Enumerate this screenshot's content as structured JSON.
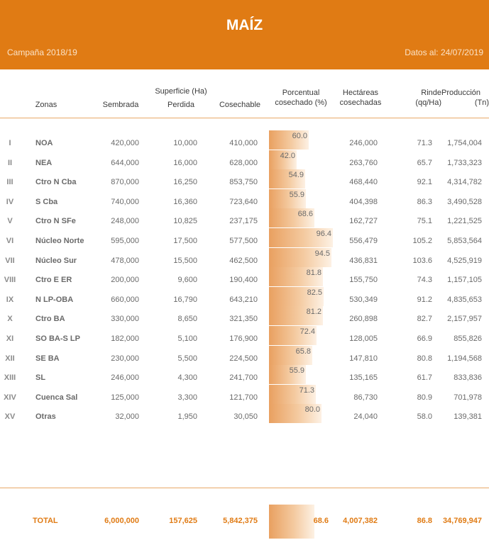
{
  "header": {
    "title": "MAÍZ",
    "campaign": "Campaña 2018/19",
    "date": "Datos al: 24/07/2019"
  },
  "columns": {
    "superficie_group": "Superficie (Ha)",
    "zonas": "Zonas",
    "sembrada": "Sembrada",
    "perdida": "Perdida",
    "cosechable": "Cosechable",
    "porcentual_1": "Porcentual",
    "porcentual_2": "cosechado (%)",
    "hectareas_1": "Hectáreas",
    "hectareas_2": "cosechadas",
    "rinde_1": "Rinde",
    "rinde_2": "(qq/Ha)",
    "produccion_1": "Producción",
    "produccion_2": "(Tn)"
  },
  "rows": [
    {
      "num": "I",
      "zona": "NOA",
      "sembrada": "420,000",
      "perdida": "10,000",
      "cosechable": "410,000",
      "pct": 60.0,
      "pct_label": "60.0",
      "hectareas": "246,000",
      "rinde": "71.3",
      "produccion": "1,754,004"
    },
    {
      "num": "II",
      "zona": "NEA",
      "sembrada": "644,000",
      "perdida": "16,000",
      "cosechable": "628,000",
      "pct": 42.0,
      "pct_label": "42.0",
      "hectareas": "263,760",
      "rinde": "65.7",
      "produccion": "1,733,323"
    },
    {
      "num": "III",
      "zona": "Ctro N Cba",
      "sembrada": "870,000",
      "perdida": "16,250",
      "cosechable": "853,750",
      "pct": 54.9,
      "pct_label": "54.9",
      "hectareas": "468,440",
      "rinde": "92.1",
      "produccion": "4,314,782"
    },
    {
      "num": "IV",
      "zona": "S Cba",
      "sembrada": "740,000",
      "perdida": "16,360",
      "cosechable": "723,640",
      "pct": 55.9,
      "pct_label": "55.9",
      "hectareas": "404,398",
      "rinde": "86.3",
      "produccion": "3,490,528"
    },
    {
      "num": "V",
      "zona": "Ctro N SFe",
      "sembrada": "248,000",
      "perdida": "10,825",
      "cosechable": "237,175",
      "pct": 68.6,
      "pct_label": "68.6",
      "hectareas": "162,727",
      "rinde": "75.1",
      "produccion": "1,221,525"
    },
    {
      "num": "VI",
      "zona": "Núcleo Norte",
      "sembrada": "595,000",
      "perdida": "17,500",
      "cosechable": "577,500",
      "pct": 96.4,
      "pct_label": "96.4",
      "hectareas": "556,479",
      "rinde": "105.2",
      "produccion": "5,853,564"
    },
    {
      "num": "VII",
      "zona": "Núcleo Sur",
      "sembrada": "478,000",
      "perdida": "15,500",
      "cosechable": "462,500",
      "pct": 94.5,
      "pct_label": "94.5",
      "hectareas": "436,831",
      "rinde": "103.6",
      "produccion": "4,525,919"
    },
    {
      "num": "VIII",
      "zona": "Ctro E ER",
      "sembrada": "200,000",
      "perdida": "9,600",
      "cosechable": "190,400",
      "pct": 81.8,
      "pct_label": "81.8",
      "hectareas": "155,750",
      "rinde": "74.3",
      "produccion": "1,157,105"
    },
    {
      "num": "IX",
      "zona": "N LP-OBA",
      "sembrada": "660,000",
      "perdida": "16,790",
      "cosechable": "643,210",
      "pct": 82.5,
      "pct_label": "82.5",
      "hectareas": "530,349",
      "rinde": "91.2",
      "produccion": "4,835,653"
    },
    {
      "num": "X",
      "zona": "Ctro BA",
      "sembrada": "330,000",
      "perdida": "8,650",
      "cosechable": "321,350",
      "pct": 81.2,
      "pct_label": "81.2",
      "hectareas": "260,898",
      "rinde": "82.7",
      "produccion": "2,157,957"
    },
    {
      "num": "XI",
      "zona": "SO BA-S LP",
      "sembrada": "182,000",
      "perdida": "5,100",
      "cosechable": "176,900",
      "pct": 72.4,
      "pct_label": "72.4",
      "hectareas": "128,005",
      "rinde": "66.9",
      "produccion": "855,826"
    },
    {
      "num": "XII",
      "zona": "SE BA",
      "sembrada": "230,000",
      "perdida": "5,500",
      "cosechable": "224,500",
      "pct": 65.8,
      "pct_label": "65.8",
      "hectareas": "147,810",
      "rinde": "80.8",
      "produccion": "1,194,568"
    },
    {
      "num": "XIII",
      "zona": "SL",
      "sembrada": "246,000",
      "perdida": "4,300",
      "cosechable": "241,700",
      "pct": 55.9,
      "pct_label": "55.9",
      "hectareas": "135,165",
      "rinde": "61.7",
      "produccion": "833,836"
    },
    {
      "num": "XIV",
      "zona": "Cuenca Sal",
      "sembrada": "125,000",
      "perdida": "3,300",
      "cosechable": "121,700",
      "pct": 71.3,
      "pct_label": "71.3",
      "hectareas": "86,730",
      "rinde": "80.9",
      "produccion": "701,978"
    },
    {
      "num": "XV",
      "zona": "Otras",
      "sembrada": "32,000",
      "perdida": "1,950",
      "cosechable": "30,050",
      "pct": 80.0,
      "pct_label": "80.0",
      "hectareas": "24,040",
      "rinde": "58.0",
      "produccion": "139,381"
    }
  ],
  "total": {
    "label": "TOTAL",
    "sembrada": "6,000,000",
    "perdida": "157,625",
    "cosechable": "5,842,375",
    "pct": 68.6,
    "pct_label": "68.6",
    "hectareas": "4,007,382",
    "rinde": "86.8",
    "produccion": "34,769,947"
  },
  "colors": {
    "banner": "#e07b14",
    "bar_dark": "#e9a060",
    "bar_light": "#fdf1e4",
    "total_text": "#e07b14"
  }
}
